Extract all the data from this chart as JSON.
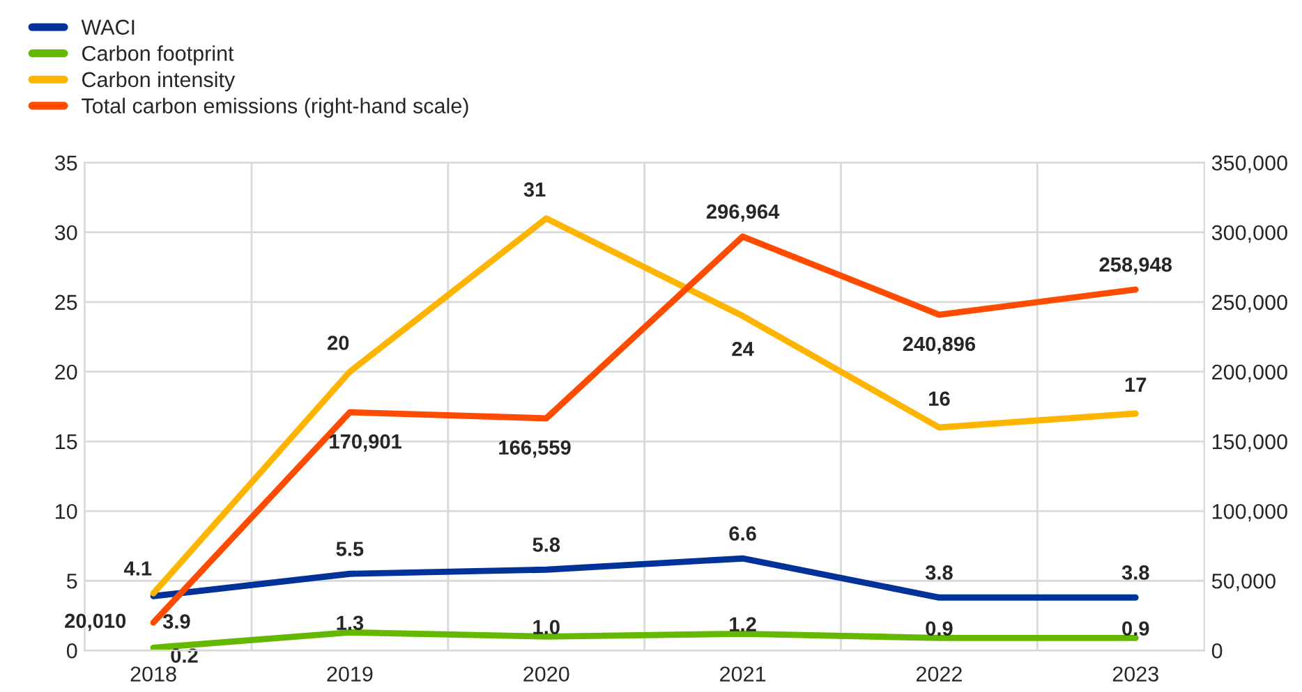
{
  "chart_data": {
    "type": "line",
    "categories": [
      "2018",
      "2019",
      "2020",
      "2021",
      "2022",
      "2023"
    ],
    "series": [
      {
        "name": "WACI",
        "color": "#003299",
        "values": [
          3.9,
          5.5,
          5.8,
          6.6,
          3.8,
          3.8
        ],
        "value_labels": [
          "3.9",
          "5.5",
          "5.8",
          "6.6",
          "3.8",
          "3.8"
        ]
      },
      {
        "name": "Carbon footprint",
        "color": "#65b800",
        "values": [
          0.2,
          1.3,
          1.0,
          1.2,
          0.9,
          0.9
        ],
        "value_labels": [
          "0.2",
          "1.3",
          "1.0",
          "1.2",
          "0.9",
          "0.9"
        ]
      },
      {
        "name": "Carbon intensity",
        "color": "#ffb400",
        "values": [
          4.1,
          20,
          31,
          24,
          16,
          17
        ],
        "value_labels": [
          "4.1",
          "20",
          "31",
          "24",
          "16",
          "17"
        ]
      },
      {
        "name": "Total carbon emissions (right-hand scale)",
        "color": "#ff4b00",
        "axis": "y2",
        "values": [
          20010,
          170901,
          166559,
          296964,
          240896,
          258948
        ],
        "value_labels": [
          "20,010",
          "170,901",
          "166,559",
          "296,964",
          "240,896",
          "258,948"
        ]
      }
    ],
    "ylim": [
      0,
      35
    ],
    "yticks": [
      0,
      5,
      10,
      15,
      20,
      25,
      30,
      35
    ],
    "y2lim": [
      0,
      350000
    ],
    "y2ticks": [
      0,
      {
        "value": 50000,
        "label": "50,000"
      },
      {
        "value": 100000,
        "label": "100,000"
      },
      {
        "value": 150000,
        "label": "150,000"
      },
      {
        "value": 200000,
        "label": "200,000"
      },
      {
        "value": 250000,
        "label": "250,000"
      },
      {
        "value": 300000,
        "label": "300,000"
      },
      {
        "value": 350000,
        "label": "350,000"
      }
    ],
    "grid": true,
    "legend": "top left",
    "marker": "none",
    "line_style": "solid"
  }
}
